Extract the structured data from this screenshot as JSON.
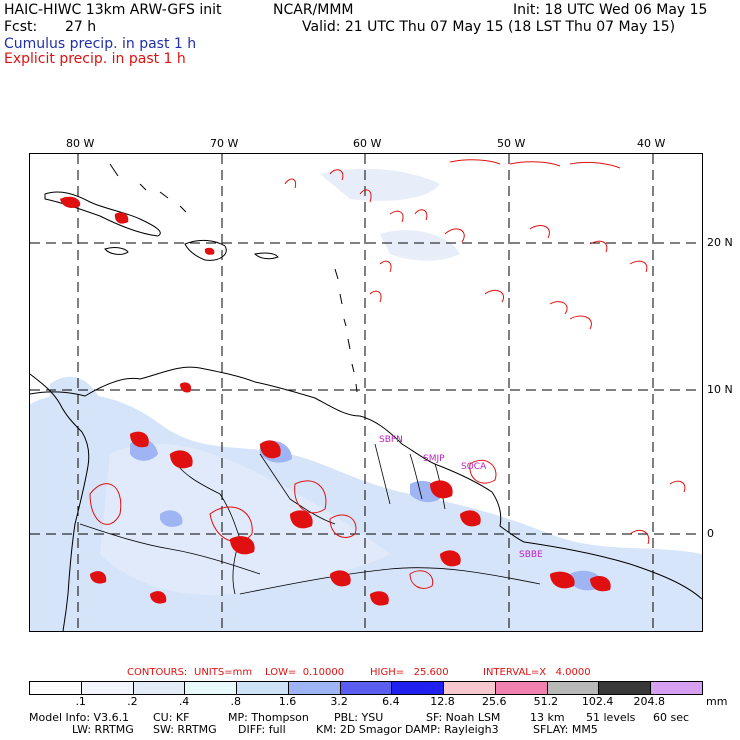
{
  "header": {
    "title": "HAIC-HIWC 13km ARW-GFS init",
    "agency": "NCAR/MMM",
    "init": "Init: 18 UTC Wed 06 May 15",
    "fcst_label": "Fcst:",
    "fcst_value": "27 h",
    "valid": "Valid: 21 UTC Thu 07 May 15 (18 LST Thu 07 May 15)",
    "legend_cumulus": "Cumulus precip. in past 1 h",
    "legend_explicit": "Explicit precip. in past 1 h"
  },
  "map": {
    "lon_labels": [
      "80 W",
      "70 W",
      "60 W",
      "50 W",
      "40 W"
    ],
    "lat_labels": [
      "20 N",
      "10 N",
      "0"
    ],
    "stations": [
      "SBFN",
      "SMJP",
      "SOCA",
      "SBBE"
    ]
  },
  "contours": {
    "label": "CONTOURS:",
    "units": "UNITS=mm",
    "low": "LOW=  0.10000",
    "high": "HIGH=   25.600",
    "interval": "INTERVAL=X   4.0000"
  },
  "colorbar": {
    "units": "mm",
    "labels": [
      ".1",
      ".2",
      ".4",
      ".8",
      "1.6",
      "3.2",
      "6.4",
      "12.8",
      "25.6",
      "51.2",
      "102.4",
      "204.8"
    ],
    "colors": [
      "#ffffff",
      "#f2f6fc",
      "#e4ecf8",
      "#e8fbfa",
      "#cfe3f8",
      "#9fb4f2",
      "#5a5ef0",
      "#2020f0",
      "#f8c8d0",
      "#f080b0",
      "#b8b8b8",
      "#383838",
      "#d8a0f0"
    ]
  },
  "footer": {
    "line1": [
      "Model Info: V3.6.1",
      "CU: KF",
      "MP: Thompson",
      "PBL: YSU",
      "SF: Noah LSM",
      "13 km",
      "51 levels",
      "60 sec"
    ],
    "line2": [
      "LW: RRTMG",
      "SW: RRTMG",
      "DIFF: full",
      "KM: 2D Smagor",
      "DAMP: Rayleigh3",
      "SFLAY: MM5"
    ]
  }
}
